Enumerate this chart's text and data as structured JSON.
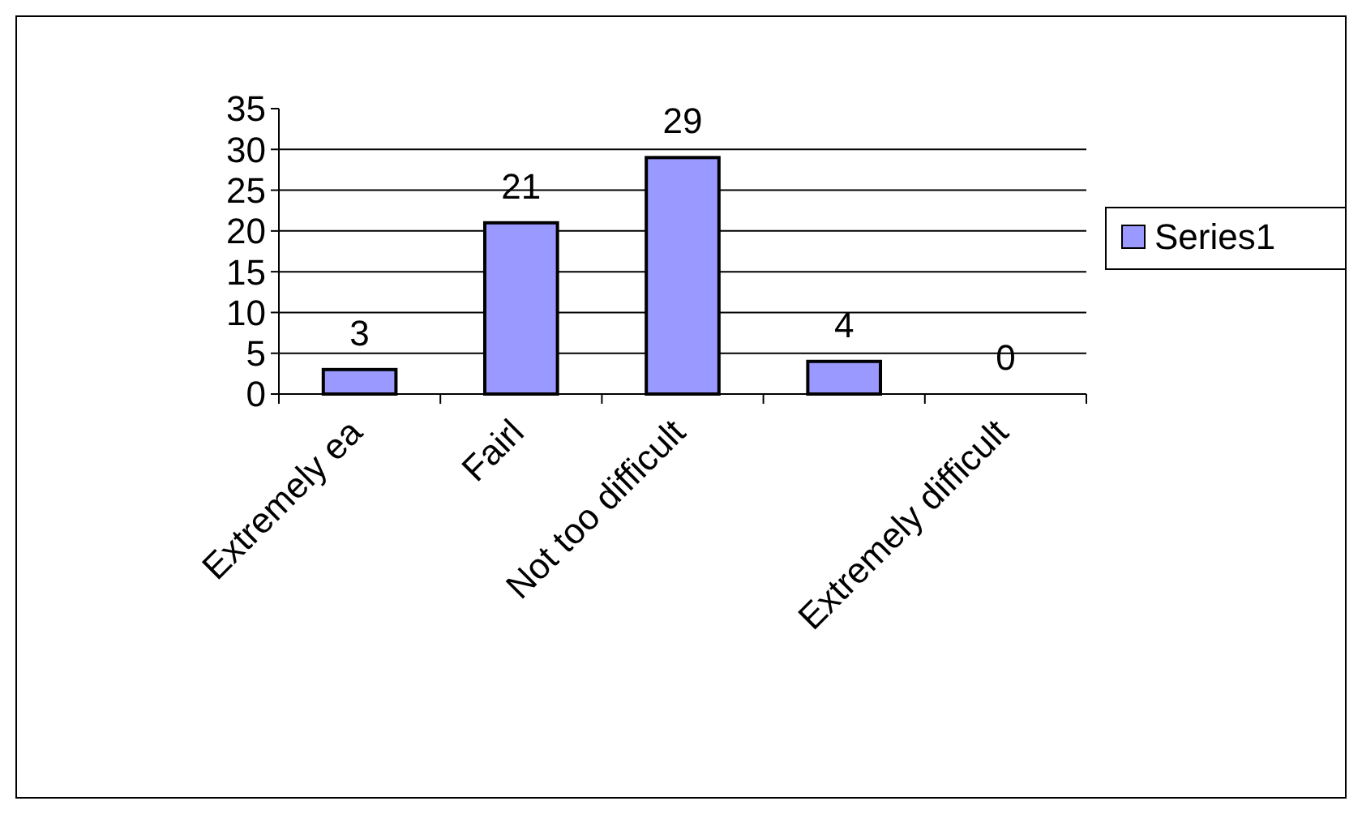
{
  "chart_data": {
    "type": "bar",
    "categories": [
      "Extremely ea",
      "Fairl",
      "Not too difficult",
      null,
      "Extremely difficult"
    ],
    "series": [
      {
        "name": "Series1",
        "color": "#9999ff",
        "values": [
          3,
          21,
          29,
          4,
          0
        ]
      }
    ],
    "ylim": [
      0,
      35
    ],
    "yticks": [
      0,
      5,
      10,
      15,
      20,
      25,
      30,
      35
    ],
    "grid": "y",
    "legend": "right",
    "data_labels": true
  }
}
